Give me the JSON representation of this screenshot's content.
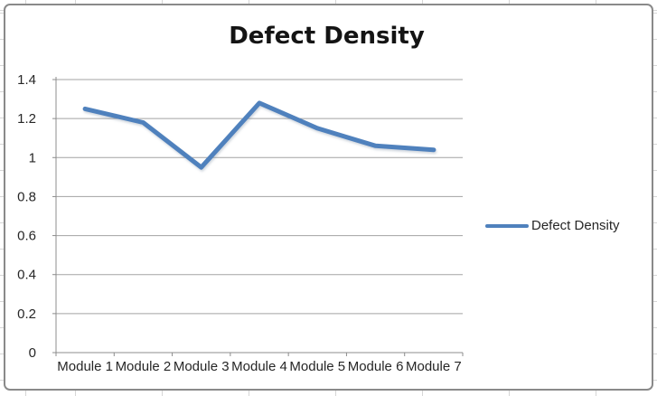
{
  "chart_data": {
    "type": "line",
    "title": "Defect Density",
    "categories": [
      "Module 1",
      "Module 2",
      "Module 3",
      "Module 4",
      "Module 5",
      "Module 6",
      "Module 7"
    ],
    "series": [
      {
        "name": "Defect Density",
        "color": "#4F81BD",
        "values": [
          1.25,
          1.18,
          0.95,
          1.28,
          1.15,
          1.06,
          1.04
        ]
      }
    ],
    "reference_line": {
      "value": 1.4,
      "color": "#BE4B48"
    },
    "ylim": [
      0,
      1.4
    ],
    "ytick_step": 0.2,
    "ytick_labels": [
      "0",
      "0.2",
      "0.4",
      "0.6",
      "0.8",
      "1",
      "1.2",
      "1.4"
    ],
    "grid": true,
    "legend_position": "right",
    "xlabel": "",
    "ylabel": ""
  },
  "colors": {
    "axis": "#8c8c8c",
    "gridline": "#a3a3a3",
    "frame_border": "#8a8a8a",
    "label_text": "#262626",
    "title_text": "#141414",
    "sheet_gridline": "#d6d6d6"
  }
}
